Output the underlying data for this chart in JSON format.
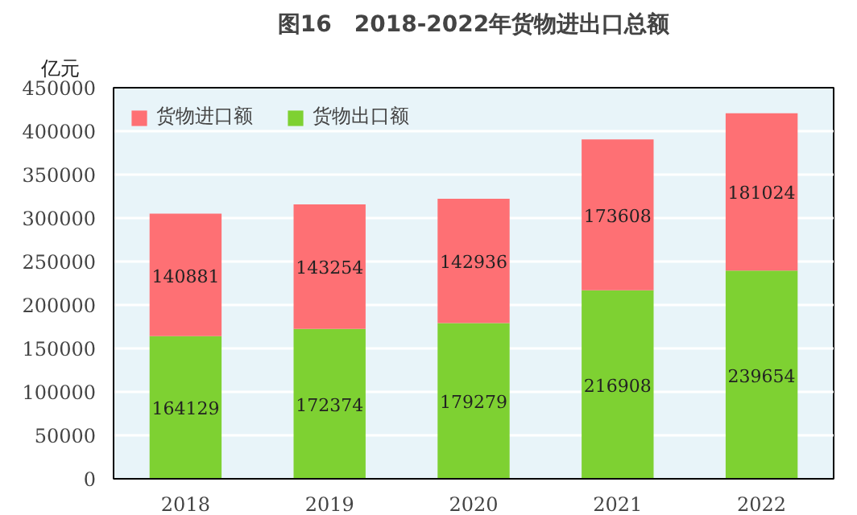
{
  "chart_data": {
    "type": "bar",
    "title": "图16　2018-2022年货物进出口总额",
    "ylabel": "亿元",
    "categories": [
      "2018",
      "2019",
      "2020",
      "2021",
      "2022"
    ],
    "stacked": true,
    "series": [
      {
        "name": "货物出口额",
        "color": "#7ed132",
        "values": [
          164129,
          172374,
          179279,
          216908,
          239654
        ]
      },
      {
        "name": "货物进口额",
        "color": "#fe7074",
        "values": [
          140881,
          143254,
          142936,
          173608,
          181024
        ]
      }
    ],
    "ylim": [
      0,
      450000
    ],
    "yticks": [
      0,
      50000,
      100000,
      150000,
      200000,
      250000,
      300000,
      350000,
      400000,
      450000
    ],
    "grid": "y",
    "legend": "top left",
    "data_labels": true
  }
}
